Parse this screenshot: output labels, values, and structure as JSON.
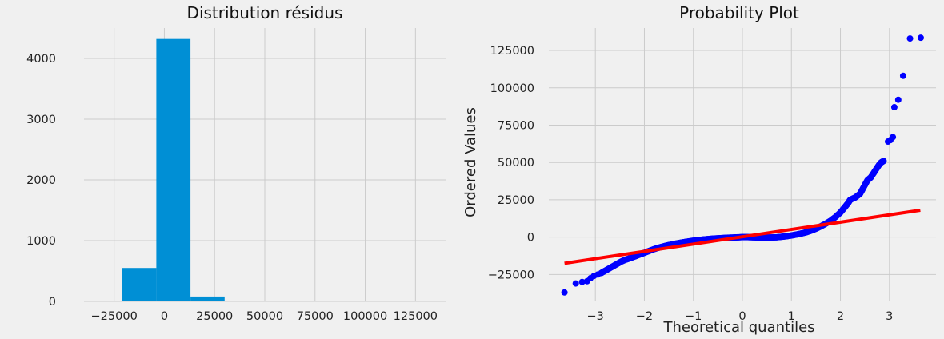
{
  "chart_data": [
    {
      "type": "bar",
      "title": "Distribution résidus",
      "xlabel": "",
      "ylabel": "",
      "xlim": [
        -40000,
        140000
      ],
      "ylim": [
        0,
        4500
      ],
      "xticks": [
        -25000,
        0,
        25000,
        50000,
        75000,
        100000,
        125000
      ],
      "yticks": [
        0,
        1000,
        2000,
        3000,
        4000
      ],
      "grid": true,
      "bar_color": "#008fd5",
      "bins": [
        {
          "x0": -21000,
          "x1": -4000,
          "count": 550
        },
        {
          "x0": -4000,
          "x1": 13000,
          "count": 4320
        },
        {
          "x0": 13000,
          "x1": 30000,
          "count": 80
        }
      ]
    },
    {
      "type": "scatter",
      "title": "Probability Plot",
      "xlabel": "Theoretical quantiles",
      "ylabel": "Ordered Values",
      "xlim": [
        -3.95,
        3.95
      ],
      "ylim": [
        -43000,
        140000
      ],
      "xticks": [
        -3,
        -2,
        -1,
        0,
        1,
        2,
        3
      ],
      "yticks": [
        -25000,
        0,
        25000,
        50000,
        75000,
        100000,
        125000
      ],
      "grid": true,
      "point_color": "#0000ff",
      "line_color": "#ff0000",
      "fit_line": {
        "x": [
          -3.63,
          3.63
        ],
        "y": [
          -17500,
          18000
        ]
      },
      "points": [
        [
          -3.63,
          -37000
        ],
        [
          -3.4,
          -31000
        ],
        [
          -3.27,
          -30000
        ],
        [
          -3.17,
          -29500
        ],
        [
          -3.1,
          -27500
        ],
        [
          -3.03,
          -26000
        ],
        [
          -2.95,
          -25000
        ],
        [
          -2.88,
          -24000
        ],
        [
          -2.8,
          -22500
        ],
        [
          -2.72,
          -21000
        ],
        [
          -2.64,
          -19500
        ],
        [
          -2.56,
          -18000
        ],
        [
          -2.48,
          -16500
        ],
        [
          -2.4,
          -15300
        ],
        [
          -2.3,
          -14200
        ],
        [
          -2.2,
          -13000
        ],
        [
          -2.1,
          -11700
        ],
        [
          -2.0,
          -10500
        ],
        [
          -1.9,
          -9200
        ],
        [
          -1.8,
          -8000
        ],
        [
          -1.7,
          -7000
        ],
        [
          -1.6,
          -6100
        ],
        [
          -1.5,
          -5300
        ],
        [
          -1.4,
          -4600
        ],
        [
          -1.3,
          -4000
        ],
        [
          -1.2,
          -3400
        ],
        [
          -1.1,
          -2900
        ],
        [
          -1.0,
          -2400
        ],
        [
          -0.9,
          -2000
        ],
        [
          -0.8,
          -1600
        ],
        [
          -0.7,
          -1300
        ],
        [
          -0.6,
          -1000
        ],
        [
          -0.5,
          -800
        ],
        [
          -0.4,
          -600
        ],
        [
          -0.3,
          -400
        ],
        [
          -0.2,
          -300
        ],
        [
          -0.1,
          -150
        ],
        [
          0.0,
          0
        ],
        [
          0.1,
          0
        ],
        [
          0.2,
          -100
        ],
        [
          0.3,
          -200
        ],
        [
          0.4,
          -300
        ],
        [
          0.5,
          -300
        ],
        [
          0.6,
          -250
        ],
        [
          0.7,
          -100
        ],
        [
          0.8,
          200
        ],
        [
          0.9,
          600
        ],
        [
          1.0,
          1100
        ],
        [
          1.1,
          1700
        ],
        [
          1.2,
          2400
        ],
        [
          1.3,
          3200
        ],
        [
          1.4,
          4300
        ],
        [
          1.5,
          5600
        ],
        [
          1.6,
          7200
        ],
        [
          1.7,
          9000
        ],
        [
          1.8,
          11000
        ],
        [
          1.9,
          13500
        ],
        [
          2.0,
          16500
        ],
        [
          2.05,
          18500
        ],
        [
          2.1,
          20500
        ],
        [
          2.15,
          22500
        ],
        [
          2.2,
          25000
        ],
        [
          2.3,
          26500
        ],
        [
          2.4,
          29000
        ],
        [
          2.45,
          32000
        ],
        [
          2.5,
          35000
        ],
        [
          2.55,
          38000
        ],
        [
          2.62,
          40000
        ],
        [
          2.68,
          43000
        ],
        [
          2.72,
          45000
        ],
        [
          2.78,
          48000
        ],
        [
          2.83,
          50000
        ],
        [
          2.88,
          51000
        ],
        [
          2.97,
          64000
        ],
        [
          3.02,
          65000
        ],
        [
          3.07,
          67000
        ],
        [
          3.1,
          87000
        ],
        [
          3.18,
          92000
        ],
        [
          3.28,
          108000
        ],
        [
          3.42,
          133000
        ],
        [
          3.64,
          133500
        ]
      ]
    }
  ]
}
